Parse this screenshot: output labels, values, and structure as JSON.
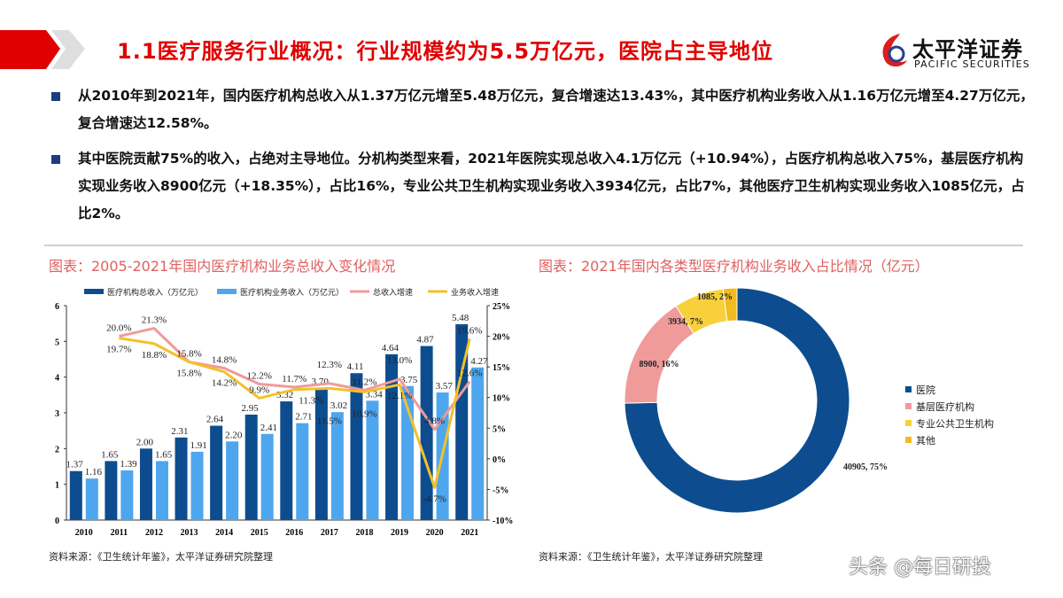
{
  "header": {
    "title": "1.1医疗服务行业概况：行业规模约为5.5万亿元，医院占主导地位",
    "logo_cn": "太平洋证券",
    "logo_en": "PACIFIC SECURITIES",
    "accent": "#e00000"
  },
  "bullets": [
    "从2010年到2021年，国内医疗机构总收入从1.37万亿元增至5.48万亿元，复合增速达13.43%，其中医疗机构业务收入从1.16万亿元增至4.27万亿元，复合增速达12.58%。",
    "其中医院贡献75%的收入，占绝对主导地位。分机构类型来看，2021年医院实现总收入4.1万亿元（+10.94%），占医疗机构总收入75%，基层医疗机构实现业务收入8900亿元（+18.35%），占比16%，专业公共卫生机构实现业务收入3934亿元，占比7%，其他医疗卫生机构实现业务收入1085亿元，占比2%。"
  ],
  "chart_data": [
    {
      "type": "bar",
      "title": "图表：2005-2021年国内医疗机构业务总收入变化情况",
      "source": "资料来源：《卫生统计年鉴》，太平洋证券研究院整理",
      "categories": [
        "2010",
        "2011",
        "2012",
        "2013",
        "2014",
        "2015",
        "2016",
        "2017",
        "2018",
        "2019",
        "2020",
        "2021"
      ],
      "ylim": [
        0,
        6
      ],
      "yticks": [
        "0",
        "1",
        "2",
        "3",
        "4",
        "5",
        "6"
      ],
      "y2lim": [
        -10,
        25
      ],
      "y2ticks": [
        "-10%",
        "-5%",
        "0%",
        "5%",
        "10%",
        "15%",
        "20%",
        "25%"
      ],
      "legend_position": "top",
      "series": [
        {
          "name": "医疗机构总收入（万亿元）",
          "kind": "bar",
          "axis": "left",
          "color": "#0d4d8f",
          "values": [
            1.37,
            1.65,
            2.0,
            2.31,
            2.64,
            2.95,
            3.32,
            3.7,
            4.11,
            4.64,
            4.87,
            5.48
          ],
          "labels": [
            "1.37",
            "1.65",
            "2.00",
            "2.31",
            "2.64",
            "2.95",
            "3.32",
            "3.70",
            "4.11",
            "4.64",
            "4.87",
            "5.48"
          ]
        },
        {
          "name": "医疗机构业务收入（万亿元）",
          "kind": "bar",
          "axis": "left",
          "color": "#4ea6ee",
          "values": [
            1.16,
            1.39,
            1.65,
            1.91,
            2.2,
            2.41,
            2.71,
            3.02,
            3.34,
            3.75,
            3.57,
            4.27
          ],
          "labels": [
            "1.16",
            "1.39",
            "1.65",
            "1.91",
            "2.20",
            "2.41",
            "2.71",
            "3.02",
            "3.34",
            "3.75",
            "3.57",
            "4.27"
          ]
        },
        {
          "name": "总收入增速",
          "kind": "line",
          "axis": "right",
          "color": "#ef9a9a",
          "values": [
            null,
            20.0,
            21.3,
            15.8,
            14.8,
            12.2,
            11.7,
            12.3,
            11.2,
            13.0,
            4.8,
            12.6
          ],
          "labels": [
            "",
            "20.0%",
            "21.3%",
            "15.8%",
            "14.8%",
            "12.2%",
            "11.7%",
            "12.3%",
            "11.2%",
            "13.0%",
            "4.8%",
            "12.6%"
          ]
        },
        {
          "name": "业务收入增速",
          "kind": "line",
          "axis": "right",
          "color": "#f2c12e",
          "values": [
            null,
            19.7,
            18.8,
            15.8,
            14.2,
            9.9,
            11.3,
            11.5,
            10.9,
            12.1,
            -4.7,
            19.6
          ],
          "labels": [
            "",
            "19.7%",
            "18.8%",
            "15.8%",
            "14.2%",
            "9.9%",
            "11.3%",
            "11.5%",
            "10.9%",
            "12.1%",
            "-4.7%",
            "19.6%"
          ]
        }
      ]
    },
    {
      "type": "pie",
      "donut": true,
      "title": "图表：2021年国内各类型医疗机构业务收入占比情况（亿元）",
      "source": "资料来源：《卫生统计年鉴》，太平洋证券研究院整理",
      "legend_position": "right",
      "slices": [
        {
          "name": "医院",
          "value": 40905,
          "percent": 75,
          "label": "40905, 75%",
          "color": "#0d4d8f"
        },
        {
          "name": "基层医疗机构",
          "value": 8900,
          "percent": 16,
          "label": "8900, 16%",
          "color": "#f19a9a"
        },
        {
          "name": "专业公共卫生机构",
          "value": 3934,
          "percent": 7,
          "label": "3934, 7%",
          "color": "#f7d03c"
        },
        {
          "name": "其他",
          "value": 1085,
          "percent": 2,
          "label": "1085, 2%",
          "color": "#f2bb1e"
        }
      ]
    }
  ],
  "watermark": "头条 @每日研投"
}
